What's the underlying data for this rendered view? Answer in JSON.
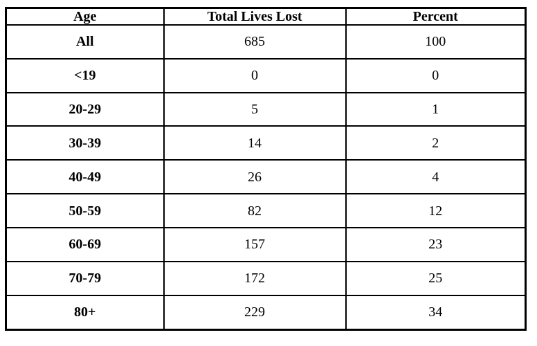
{
  "table": {
    "columns": {
      "age": "Age",
      "total": "Total Lives Lost",
      "percent": "Percent"
    },
    "rows": [
      {
        "age": "All",
        "total": "685",
        "percent": "100"
      },
      {
        "age": "<19",
        "total": "0",
        "percent": "0"
      },
      {
        "age": "20-29",
        "total": "5",
        "percent": "1"
      },
      {
        "age": "30-39",
        "total": "14",
        "percent": "2"
      },
      {
        "age": "40-49",
        "total": "26",
        "percent": "4"
      },
      {
        "age": "50-59",
        "total": "82",
        "percent": "12"
      },
      {
        "age": "60-69",
        "total": "157",
        "percent": "23"
      },
      {
        "age": "70-79",
        "total": "172",
        "percent": "25"
      },
      {
        "age": "80+",
        "total": "229",
        "percent": "34"
      }
    ]
  },
  "colors": {
    "border": "#000000",
    "text": "#000000",
    "background": "#ffffff"
  }
}
